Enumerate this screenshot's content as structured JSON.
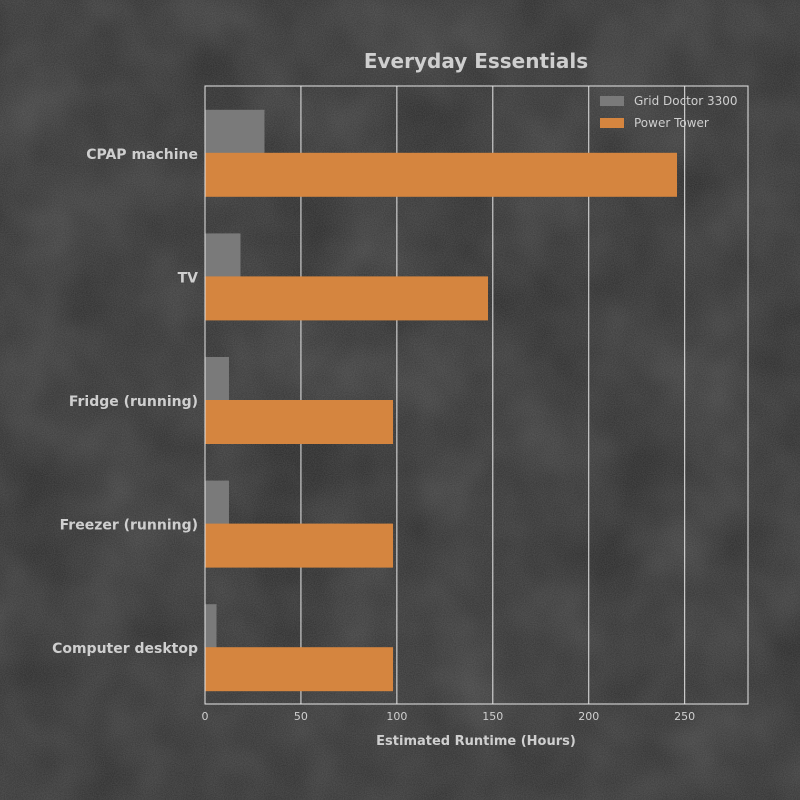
{
  "chart_data": {
    "type": "bar",
    "orientation": "horizontal",
    "title": "Everyday Essentials",
    "xlabel": "Estimated Runtime (Hours)",
    "ylabel": "",
    "categories": [
      "CPAP machine",
      "TV",
      "Fridge (running)",
      "Freezer (running)",
      "Computer desktop"
    ],
    "series": [
      {
        "name": "Grid Doctor 3300",
        "values": [
          31,
          18.5,
          12.5,
          12.5,
          6
        ]
      },
      {
        "name": "Power Tower",
        "values": [
          246,
          147.5,
          98,
          98,
          98
        ]
      }
    ],
    "xlim": [
      0,
      283
    ],
    "xticks": [
      0,
      50,
      100,
      150,
      200,
      250
    ],
    "grid": "vertical",
    "legend_position": "top-right",
    "colors": {
      "background": "#2b2b2b",
      "text": "#cfcfcf",
      "axis": "#e8e8e8",
      "grid": "#e8e8e8",
      "series": [
        "#7a7a7a",
        "#d5853f"
      ]
    }
  }
}
